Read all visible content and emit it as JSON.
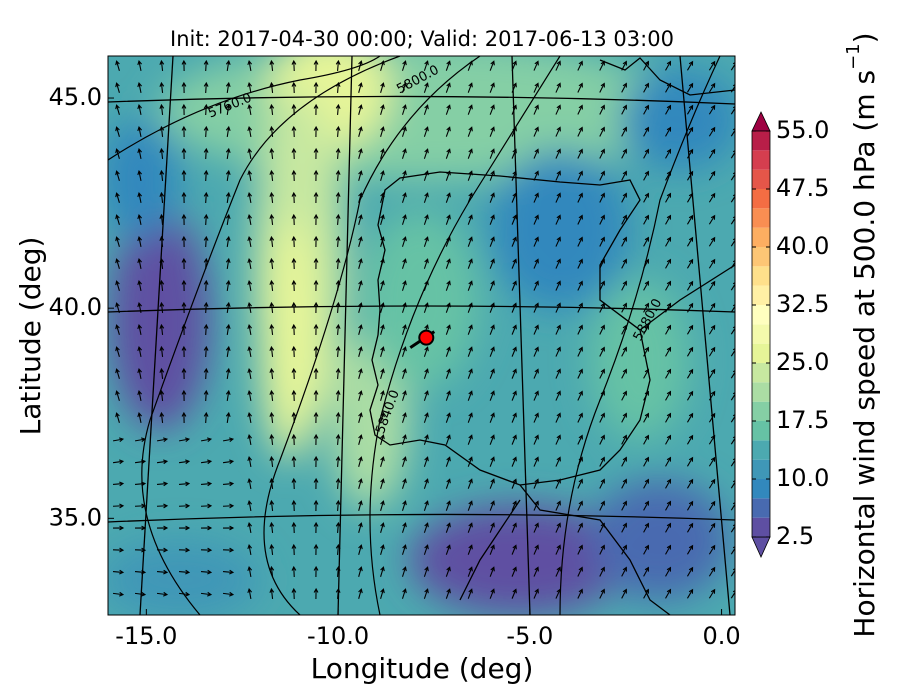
{
  "chart_data": {
    "type": "filled_contour_map",
    "title": "Init: 2017-04-30 00:00; Valid: 2017-06-13 03:00",
    "x_label": "Longitude (deg)",
    "y_label": "Latitude (deg)",
    "xlim": [
      -16.0,
      0.35
    ],
    "ylim": [
      32.7,
      46.0
    ],
    "xticks": [
      {
        "value": -15,
        "label": "-15.0"
      },
      {
        "value": -10,
        "label": "-10.0"
      },
      {
        "value": -5,
        "label": "-5.0"
      },
      {
        "value": 0,
        "label": "0.0"
      }
    ],
    "yticks": [
      {
        "value": 35,
        "label": "35.0"
      },
      {
        "value": 40,
        "label": "40.0"
      },
      {
        "value": 45,
        "label": "45.0"
      }
    ],
    "contour_labels": [
      "5760.0",
      "5800.0",
      "5880.0",
      "5840.0"
    ],
    "marker": {
      "lon": -7.7,
      "lat": 39.3,
      "color": "#ff0000"
    },
    "colorbar": {
      "label_main": "Horizontal wind speed at 500.0 hPa (m s",
      "label_sup": "−1",
      "label_end": ")",
      "levels": [
        2.5,
        5,
        7.5,
        10,
        12.5,
        15,
        17.5,
        20,
        22.5,
        25,
        27.5,
        30,
        32.5,
        35,
        37.5,
        40,
        42.5,
        45,
        47.5,
        50,
        52.5,
        55
      ],
      "colors": [
        "#5e4fa2",
        "#486ab0",
        "#3288bd",
        "#3f97b7",
        "#4ca9b0",
        "#66c2a5",
        "#85cfa5",
        "#abdda4",
        "#c7e8a0",
        "#e6f598",
        "#f4faac",
        "#ffffbf",
        "#fff0a5",
        "#fee08b",
        "#fdc675",
        "#fdae61",
        "#f98e52",
        "#f46d43",
        "#e55649",
        "#d53e4f",
        "#b81e48"
      ],
      "ticks": [
        2.5,
        {
          "value": 10,
          "label": "10.0"
        },
        17.5,
        {
          "value": 25,
          "label": "25.0"
        },
        32.5,
        {
          "value": 40,
          "label": "40.0"
        },
        47.5,
        {
          "value": 55,
          "label": "55.0"
        }
      ]
    }
  }
}
